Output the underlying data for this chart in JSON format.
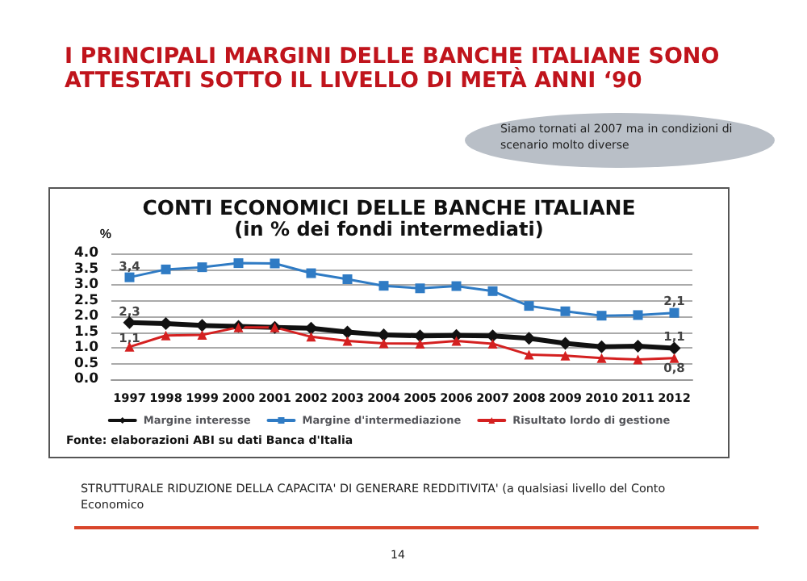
{
  "chart_data": {
    "type": "line",
    "title": "CONTI ECONOMICI DELLE BANCHE ITALIANE",
    "subtitle": "(in % dei fondi intermediati)",
    "ylabel": "%",
    "categories": [
      "1997",
      "1998",
      "1999",
      "2000",
      "2001",
      "2002",
      "2003",
      "2004",
      "2005",
      "2006",
      "2007",
      "2008",
      "2009",
      "2010",
      "2011",
      "2012"
    ],
    "series": [
      {
        "name": "Margine interesse",
        "color": "#111111",
        "marker": "diamond",
        "values": [
          1.8,
          1.77,
          1.71,
          1.68,
          1.65,
          1.62,
          1.5,
          1.41,
          1.38,
          1.39,
          1.38,
          1.3,
          1.14,
          1.03,
          1.05,
          0.99
        ]
      },
      {
        "name": "Margine d'intermediazione",
        "color": "#2f7bc4",
        "marker": "square",
        "values": [
          3.24,
          3.49,
          3.56,
          3.69,
          3.68,
          3.37,
          3.18,
          2.97,
          2.89,
          2.96,
          2.8,
          2.33,
          2.16,
          2.02,
          2.04,
          2.11
        ]
      },
      {
        "name": "Risultato lordo di gestione",
        "color": "#d42020",
        "marker": "triangle",
        "values": [
          1.03,
          1.39,
          1.41,
          1.65,
          1.65,
          1.35,
          1.22,
          1.14,
          1.13,
          1.22,
          1.13,
          0.78,
          0.75,
          0.67,
          0.63,
          0.67
        ]
      }
    ],
    "ylim": [
      0,
      4
    ],
    "yticks": [
      {
        "value": 0,
        "label": "0.0"
      },
      {
        "value": 0.5,
        "label": "0.5"
      },
      {
        "value": 1,
        "label": "1.0"
      },
      {
        "value": 1.5,
        "label": "1.5"
      },
      {
        "value": 2,
        "label": "2.0"
      },
      {
        "value": 2.5,
        "label": "2.5"
      },
      {
        "value": 3,
        "label": "3.0"
      },
      {
        "value": 3.5,
        "label": "3.5"
      },
      {
        "value": 4,
        "label": "4.0"
      }
    ],
    "grid": "y",
    "legend": "bottom",
    "line_style": "solid",
    "annotations": [
      "I  PRINCIPALI MARGINI DELLE BANCHE ITALIANE SONO ATTESTATI SOTTO IL LIVELLO DI METÀ ANNI ‘90",
      "Siamo tornati al 2007 ma in condizioni di scenario molto diverse",
      "Fonte: elaborazioni ABI su dati Banca d'Italia",
      "STRUTTURALE RIDUZIONE DELLA CAPACITA' DI GENERARE REDDITIVITA' (a qualsiasi livello del Conto Economico",
      "14",
      {
        "text": "3,4",
        "x": "1997",
        "y": 3.6
      },
      {
        "text": "2,3",
        "x": "1997",
        "y": 2.15
      },
      {
        "text": "1,1",
        "x": "1997",
        "y": 1.3
      },
      {
        "text": "2,1",
        "x": "2012",
        "y": 2.5
      },
      {
        "text": "1,1",
        "x": "2012",
        "y": 1.35
      },
      {
        "text": "0,8",
        "x": "2012",
        "y": 0.35
      }
    ]
  }
}
